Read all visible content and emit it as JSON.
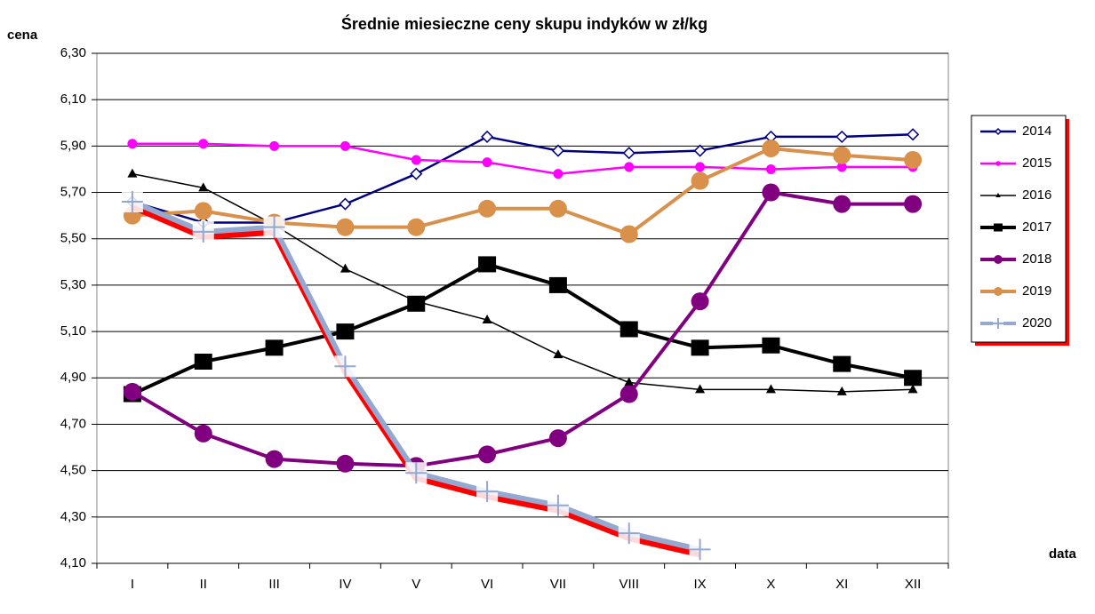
{
  "chart_data": {
    "type": "line",
    "title": "Średnie miesieczne ceny skupu indyków w zł/kg",
    "y_label": "cena",
    "x_label": "data",
    "categories": [
      "I",
      "II",
      "III",
      "IV",
      "V",
      "VI",
      "VII",
      "VIII",
      "IX",
      "X",
      "XI",
      "XII"
    ],
    "ylim": [
      4.1,
      6.3
    ],
    "yticks": [
      {
        "value": 4.1,
        "label": "4,10"
      },
      {
        "value": 4.3,
        "label": "4,30"
      },
      {
        "value": 4.5,
        "label": "4,50"
      },
      {
        "value": 4.7,
        "label": "4,70"
      },
      {
        "value": 4.9,
        "label": "4,90"
      },
      {
        "value": 5.1,
        "label": "5,10"
      },
      {
        "value": 5.3,
        "label": "5,30"
      },
      {
        "value": 5.5,
        "label": "5,50"
      },
      {
        "value": 5.7,
        "label": "5,70"
      },
      {
        "value": 5.9,
        "label": "5,90"
      },
      {
        "value": 6.1,
        "label": "6,10"
      },
      {
        "value": 6.3,
        "label": "6,30"
      }
    ],
    "grid": true,
    "legend": "right",
    "series": [
      {
        "name": "2014",
        "color": "#000080",
        "marker": "diamond",
        "values": [
          5.66,
          5.57,
          5.57,
          5.65,
          5.78,
          5.94,
          5.88,
          5.87,
          5.88,
          5.94,
          5.94,
          5.95
        ]
      },
      {
        "name": "2015",
        "color": "#ff00ff",
        "marker": "small-circle",
        "values": [
          5.91,
          5.91,
          5.9,
          5.9,
          5.84,
          5.83,
          5.78,
          5.81,
          5.81,
          5.8,
          5.81,
          5.81
        ]
      },
      {
        "name": "2016",
        "color": "#000000",
        "marker": "triangle",
        "values": [
          5.78,
          5.72,
          5.56,
          5.37,
          5.23,
          5.15,
          5.0,
          4.88,
          4.85,
          4.85,
          4.84,
          4.85
        ]
      },
      {
        "name": "2017",
        "color": "#000000",
        "marker": "square",
        "values": [
          4.83,
          4.97,
          5.03,
          5.1,
          5.22,
          5.39,
          5.3,
          5.11,
          5.03,
          5.04,
          4.96,
          4.9
        ]
      },
      {
        "name": "2018",
        "color": "#800080",
        "marker": "circle",
        "values": [
          4.84,
          4.66,
          4.55,
          4.53,
          4.52,
          4.57,
          4.64,
          4.83,
          5.23,
          5.7,
          5.65,
          5.65
        ]
      },
      {
        "name": "2019",
        "color": "#d8904a",
        "marker": "circle",
        "values": [
          5.6,
          5.62,
          5.57,
          5.55,
          5.55,
          5.63,
          5.63,
          5.52,
          5.75,
          5.89,
          5.86,
          5.84
        ]
      },
      {
        "name": "2020",
        "color": "#95a8cf",
        "marker": "plus",
        "values": [
          5.66,
          5.53,
          5.55,
          4.95,
          4.49,
          4.41,
          4.35,
          4.23,
          4.16,
          null,
          null,
          null
        ]
      }
    ]
  }
}
